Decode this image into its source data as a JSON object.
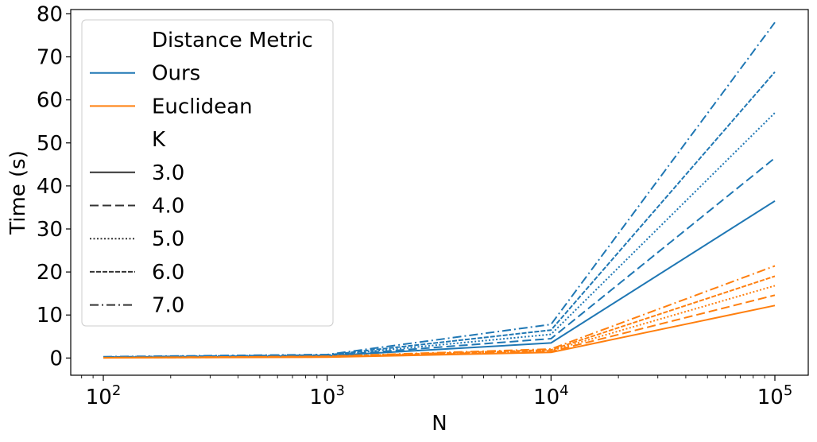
{
  "chart_data": {
    "type": "line",
    "xlabel": "N",
    "ylabel": "Time (s)",
    "x_scale": "log",
    "x": [
      100,
      1000,
      10000,
      100000
    ],
    "x_tick_labels": [
      {
        "base": "10",
        "exp": "2"
      },
      {
        "base": "10",
        "exp": "3"
      },
      {
        "base": "10",
        "exp": "4"
      },
      {
        "base": "10",
        "exp": "5"
      }
    ],
    "ylim": [
      -4,
      81
    ],
    "y_ticks": [
      0,
      10,
      20,
      30,
      40,
      50,
      60,
      70,
      80
    ],
    "grid": false,
    "legend_placement": "upper-left",
    "legend": {
      "hue_title": "Distance Metric",
      "hue_entries": [
        {
          "label": "Ours",
          "color": "#1f77b4"
        },
        {
          "label": "Euclidean",
          "color": "#ff7f0e"
        }
      ],
      "style_title": "K",
      "style_entries": [
        {
          "label": "3.0",
          "dash": "solid"
        },
        {
          "label": "4.0",
          "dash": "dashed"
        },
        {
          "label": "5.0",
          "dash": "dotted"
        },
        {
          "label": "6.0",
          "dash": "densely-dashed"
        },
        {
          "label": "7.0",
          "dash": "dashdot"
        }
      ]
    },
    "series": [
      {
        "metric": "Ours",
        "k": "3.0",
        "color": "#1f77b4",
        "dash": "solid",
        "values": [
          0.1,
          0.5,
          3.5,
          36.5
        ]
      },
      {
        "metric": "Ours",
        "k": "4.0",
        "color": "#1f77b4",
        "dash": "dashed",
        "values": [
          0.15,
          0.55,
          4.5,
          46.5
        ]
      },
      {
        "metric": "Ours",
        "k": "5.0",
        "color": "#1f77b4",
        "dash": "dotted",
        "values": [
          0.2,
          0.6,
          5.5,
          57.0
        ]
      },
      {
        "metric": "Ours",
        "k": "6.0",
        "color": "#1f77b4",
        "dash": "densely-dashed",
        "values": [
          0.25,
          0.7,
          6.5,
          66.5
        ]
      },
      {
        "metric": "Ours",
        "k": "7.0",
        "color": "#1f77b4",
        "dash": "dashdot",
        "values": [
          0.3,
          0.8,
          7.8,
          78.0
        ]
      },
      {
        "metric": "Euclidean",
        "k": "3.0",
        "color": "#ff7f0e",
        "dash": "solid",
        "values": [
          0.05,
          0.2,
          1.3,
          12.2
        ]
      },
      {
        "metric": "Euclidean",
        "k": "4.0",
        "color": "#ff7f0e",
        "dash": "dashed",
        "values": [
          0.05,
          0.25,
          1.5,
          14.6
        ]
      },
      {
        "metric": "Euclidean",
        "k": "5.0",
        "color": "#ff7f0e",
        "dash": "dotted",
        "values": [
          0.06,
          0.3,
          1.7,
          16.8
        ]
      },
      {
        "metric": "Euclidean",
        "k": "6.0",
        "color": "#ff7f0e",
        "dash": "densely-dashed",
        "values": [
          0.07,
          0.35,
          1.9,
          19.0
        ]
      },
      {
        "metric": "Euclidean",
        "k": "7.0",
        "color": "#ff7f0e",
        "dash": "dashdot",
        "values": [
          0.08,
          0.4,
          2.1,
          21.4
        ]
      }
    ]
  }
}
